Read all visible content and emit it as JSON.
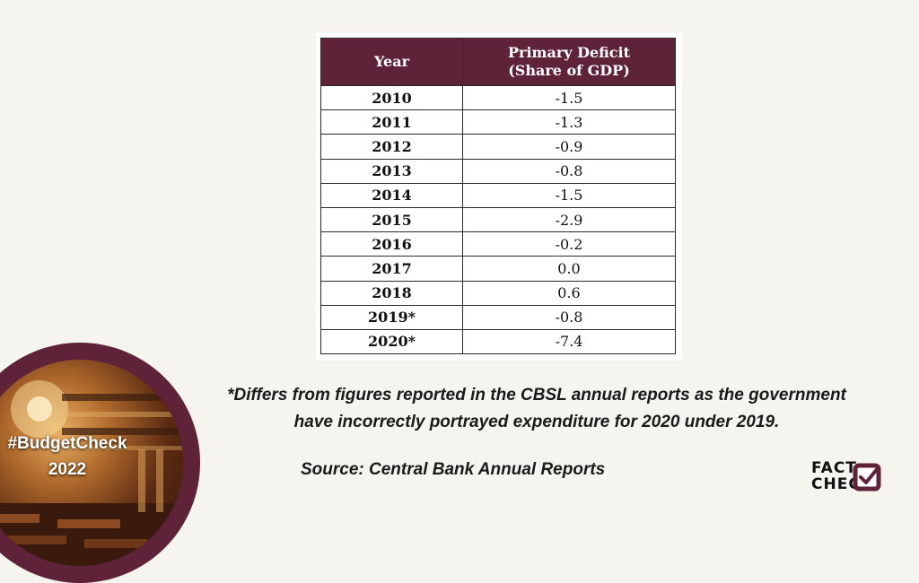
{
  "table": {
    "header_year": "Year",
    "header_value_line1": "Primary Deficit",
    "header_value_line2": "(Share of GDP)",
    "rows": [
      {
        "year": "2010",
        "value": "-1.5"
      },
      {
        "year": "2011",
        "value": "-1.3"
      },
      {
        "year": "2012",
        "value": "-0.9"
      },
      {
        "year": "2013",
        "value": "-0.8"
      },
      {
        "year": "2014",
        "value": "-1.5"
      },
      {
        "year": "2015",
        "value": "-2.9"
      },
      {
        "year": "2016",
        "value": "-0.2"
      },
      {
        "year": "2017",
        "value": "0.0"
      },
      {
        "year": "2018",
        "value": "0.6"
      },
      {
        "year": "2019*",
        "value": "-0.8"
      },
      {
        "year": "2020*",
        "value": "-7.4"
      }
    ]
  },
  "chart_data": {
    "type": "table",
    "columns": [
      "Year",
      "Primary Deficit (Share of GDP)"
    ],
    "x": [
      "2010",
      "2011",
      "2012",
      "2013",
      "2014",
      "2015",
      "2016",
      "2017",
      "2018",
      "2019*",
      "2020*"
    ],
    "values": [
      -1.5,
      -1.3,
      -0.9,
      -0.8,
      -1.5,
      -2.9,
      -0.2,
      0.0,
      0.6,
      -0.8,
      -7.4
    ]
  },
  "footnote": {
    "line1": "*Differs from figures reported in the CBSL annual reports as the government",
    "line2": "have incorrectly portrayed expenditure for 2020 under 2019."
  },
  "source": "Source: Central Bank Annual Reports",
  "badge": {
    "line1": "#BudgetCheck",
    "line2": "2022"
  },
  "logo": {
    "line1": "FACT",
    "line2": "CHECK",
    "icon": "check-mark-icon"
  },
  "colors": {
    "accent": "#5e2239",
    "background": "#f5f4ee"
  }
}
